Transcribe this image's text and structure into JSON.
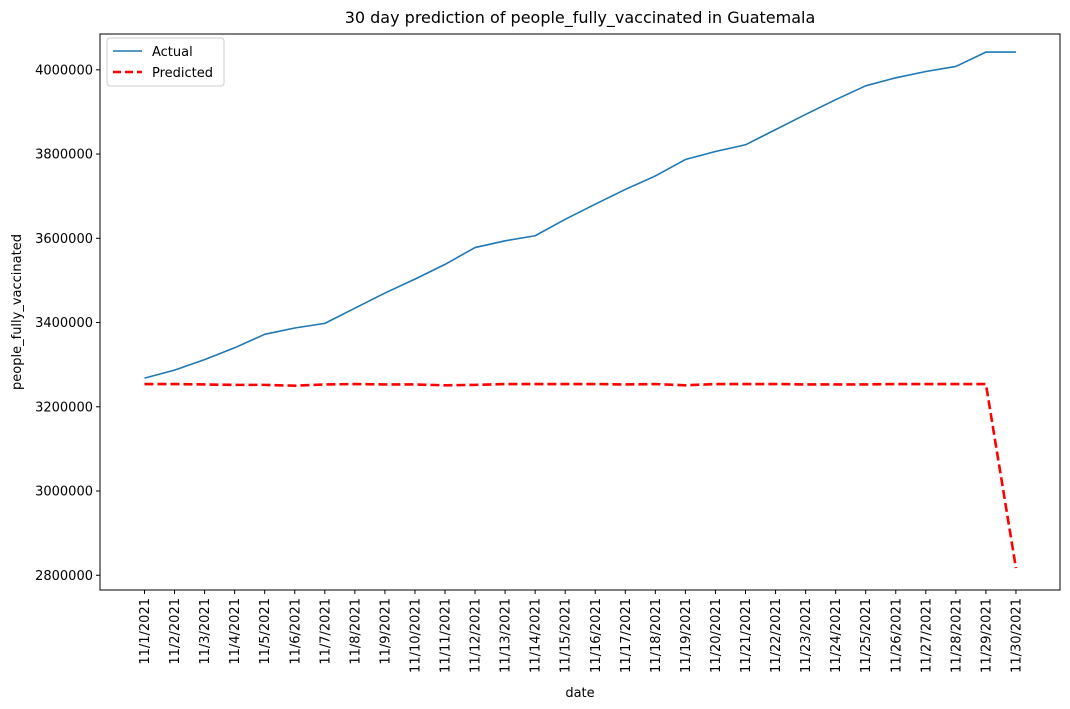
{
  "chart_data": {
    "type": "line",
    "title": "30 day prediction of people_fully_vaccinated in Guatemala",
    "xlabel": "date",
    "ylabel": "people_fully_vaccinated",
    "categories": [
      "11/1/2021",
      "11/2/2021",
      "11/3/2021",
      "11/4/2021",
      "11/5/2021",
      "11/6/2021",
      "11/7/2021",
      "11/8/2021",
      "11/9/2021",
      "11/10/2021",
      "11/11/2021",
      "11/12/2021",
      "11/13/2021",
      "11/14/2021",
      "11/15/2021",
      "11/16/2021",
      "11/17/2021",
      "11/18/2021",
      "11/19/2021",
      "11/20/2021",
      "11/21/2021",
      "11/22/2021",
      "11/23/2021",
      "11/24/2021",
      "11/25/2021",
      "11/26/2021",
      "11/27/2021",
      "11/28/2021",
      "11/29/2021",
      "11/30/2021"
    ],
    "ylim": [
      2765000,
      4085000
    ],
    "yticks": [
      2800000,
      3000000,
      3200000,
      3400000,
      3600000,
      3800000,
      4000000
    ],
    "grid": false,
    "legend_position": "top-left",
    "series": [
      {
        "name": "Actual",
        "color": "#1f77b4",
        "style": "solid",
        "values": [
          3268000,
          3287000,
          3312000,
          3340000,
          3372000,
          3387000,
          3398000,
          3434000,
          3470000,
          3503000,
          3538000,
          3578000,
          3594000,
          3606000,
          3645000,
          3681000,
          3716000,
          3748000,
          3787000,
          3806000,
          3822000,
          3858000,
          3894000,
          3929000,
          3962000,
          3981000,
          3996000,
          4008000,
          4042000,
          4042000
        ]
      },
      {
        "name": "Predicted",
        "color": "#ff0000",
        "style": "dashed",
        "values": [
          3254000,
          3254000,
          3253000,
          3252000,
          3252000,
          3250000,
          3253000,
          3254000,
          3253000,
          3253000,
          3251000,
          3252000,
          3254000,
          3254000,
          3254000,
          3254000,
          3253000,
          3254000,
          3251000,
          3254000,
          3254000,
          3254000,
          3253000,
          3253000,
          3253000,
          3254000,
          3254000,
          3254000,
          3254000,
          2817000
        ]
      }
    ]
  }
}
